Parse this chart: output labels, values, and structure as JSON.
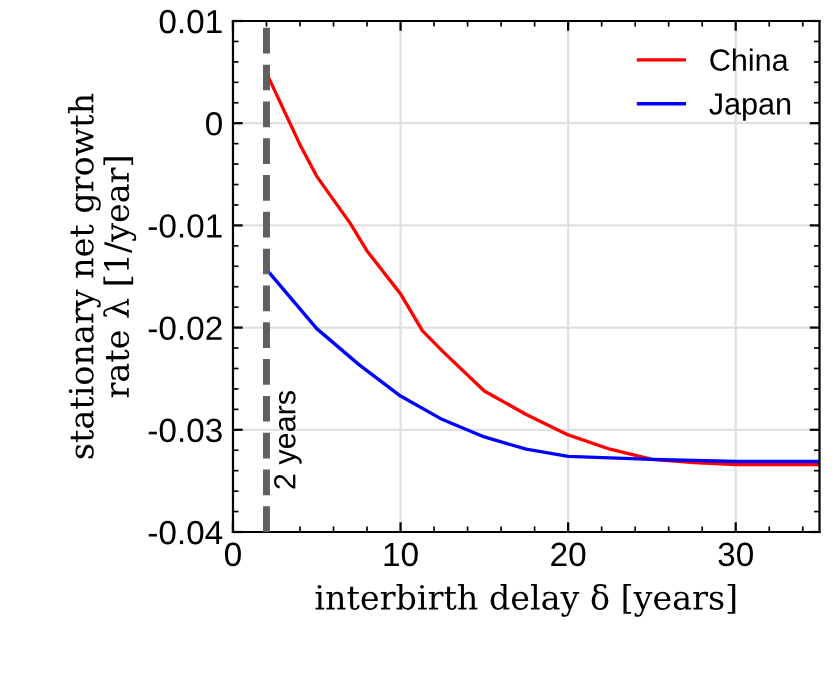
{
  "chart_data": {
    "type": "line",
    "xlabel": "interbirth delay δ [years]",
    "ylabel": "stationary net growth\nrate λ [1/year]",
    "xlim": [
      0,
      35
    ],
    "ylim": [
      -0.04,
      0.01
    ],
    "xticks": [
      0,
      10,
      20,
      30
    ],
    "yticks": [
      -0.04,
      -0.03,
      -0.02,
      -0.01,
      0,
      0.01
    ],
    "grid": true,
    "legend": "top right",
    "line_style": "solid",
    "marker": "none",
    "ref_lines": [
      {
        "axis": "x",
        "value": 2,
        "label": "2 years",
        "color": "#606060",
        "line_style": "dashed"
      }
    ],
    "series": [
      {
        "name": "China",
        "color": "#ff0000",
        "x": [
          2,
          4,
          5,
          6,
          7,
          8,
          10,
          11.3,
          12.5,
          15,
          17.5,
          20,
          22.5,
          25,
          27.5,
          30,
          35
        ],
        "values": [
          0.0049,
          -0.0021,
          -0.0052,
          -0.0075,
          -0.0098,
          -0.0125,
          -0.0167,
          -0.0203,
          -0.0223,
          -0.0262,
          -0.0285,
          -0.0305,
          -0.0319,
          -0.0329,
          -0.0332,
          -0.0334,
          -0.0334
        ]
      },
      {
        "name": "Japan",
        "color": "#0000ff",
        "x": [
          2,
          5,
          7.5,
          10,
          12.5,
          15,
          17.5,
          20,
          25,
          30,
          35
        ],
        "values": [
          -0.0143,
          -0.0201,
          -0.0236,
          -0.0267,
          -0.029,
          -0.0307,
          -0.0319,
          -0.0326,
          -0.0329,
          -0.0331,
          -0.0331
        ]
      }
    ]
  }
}
